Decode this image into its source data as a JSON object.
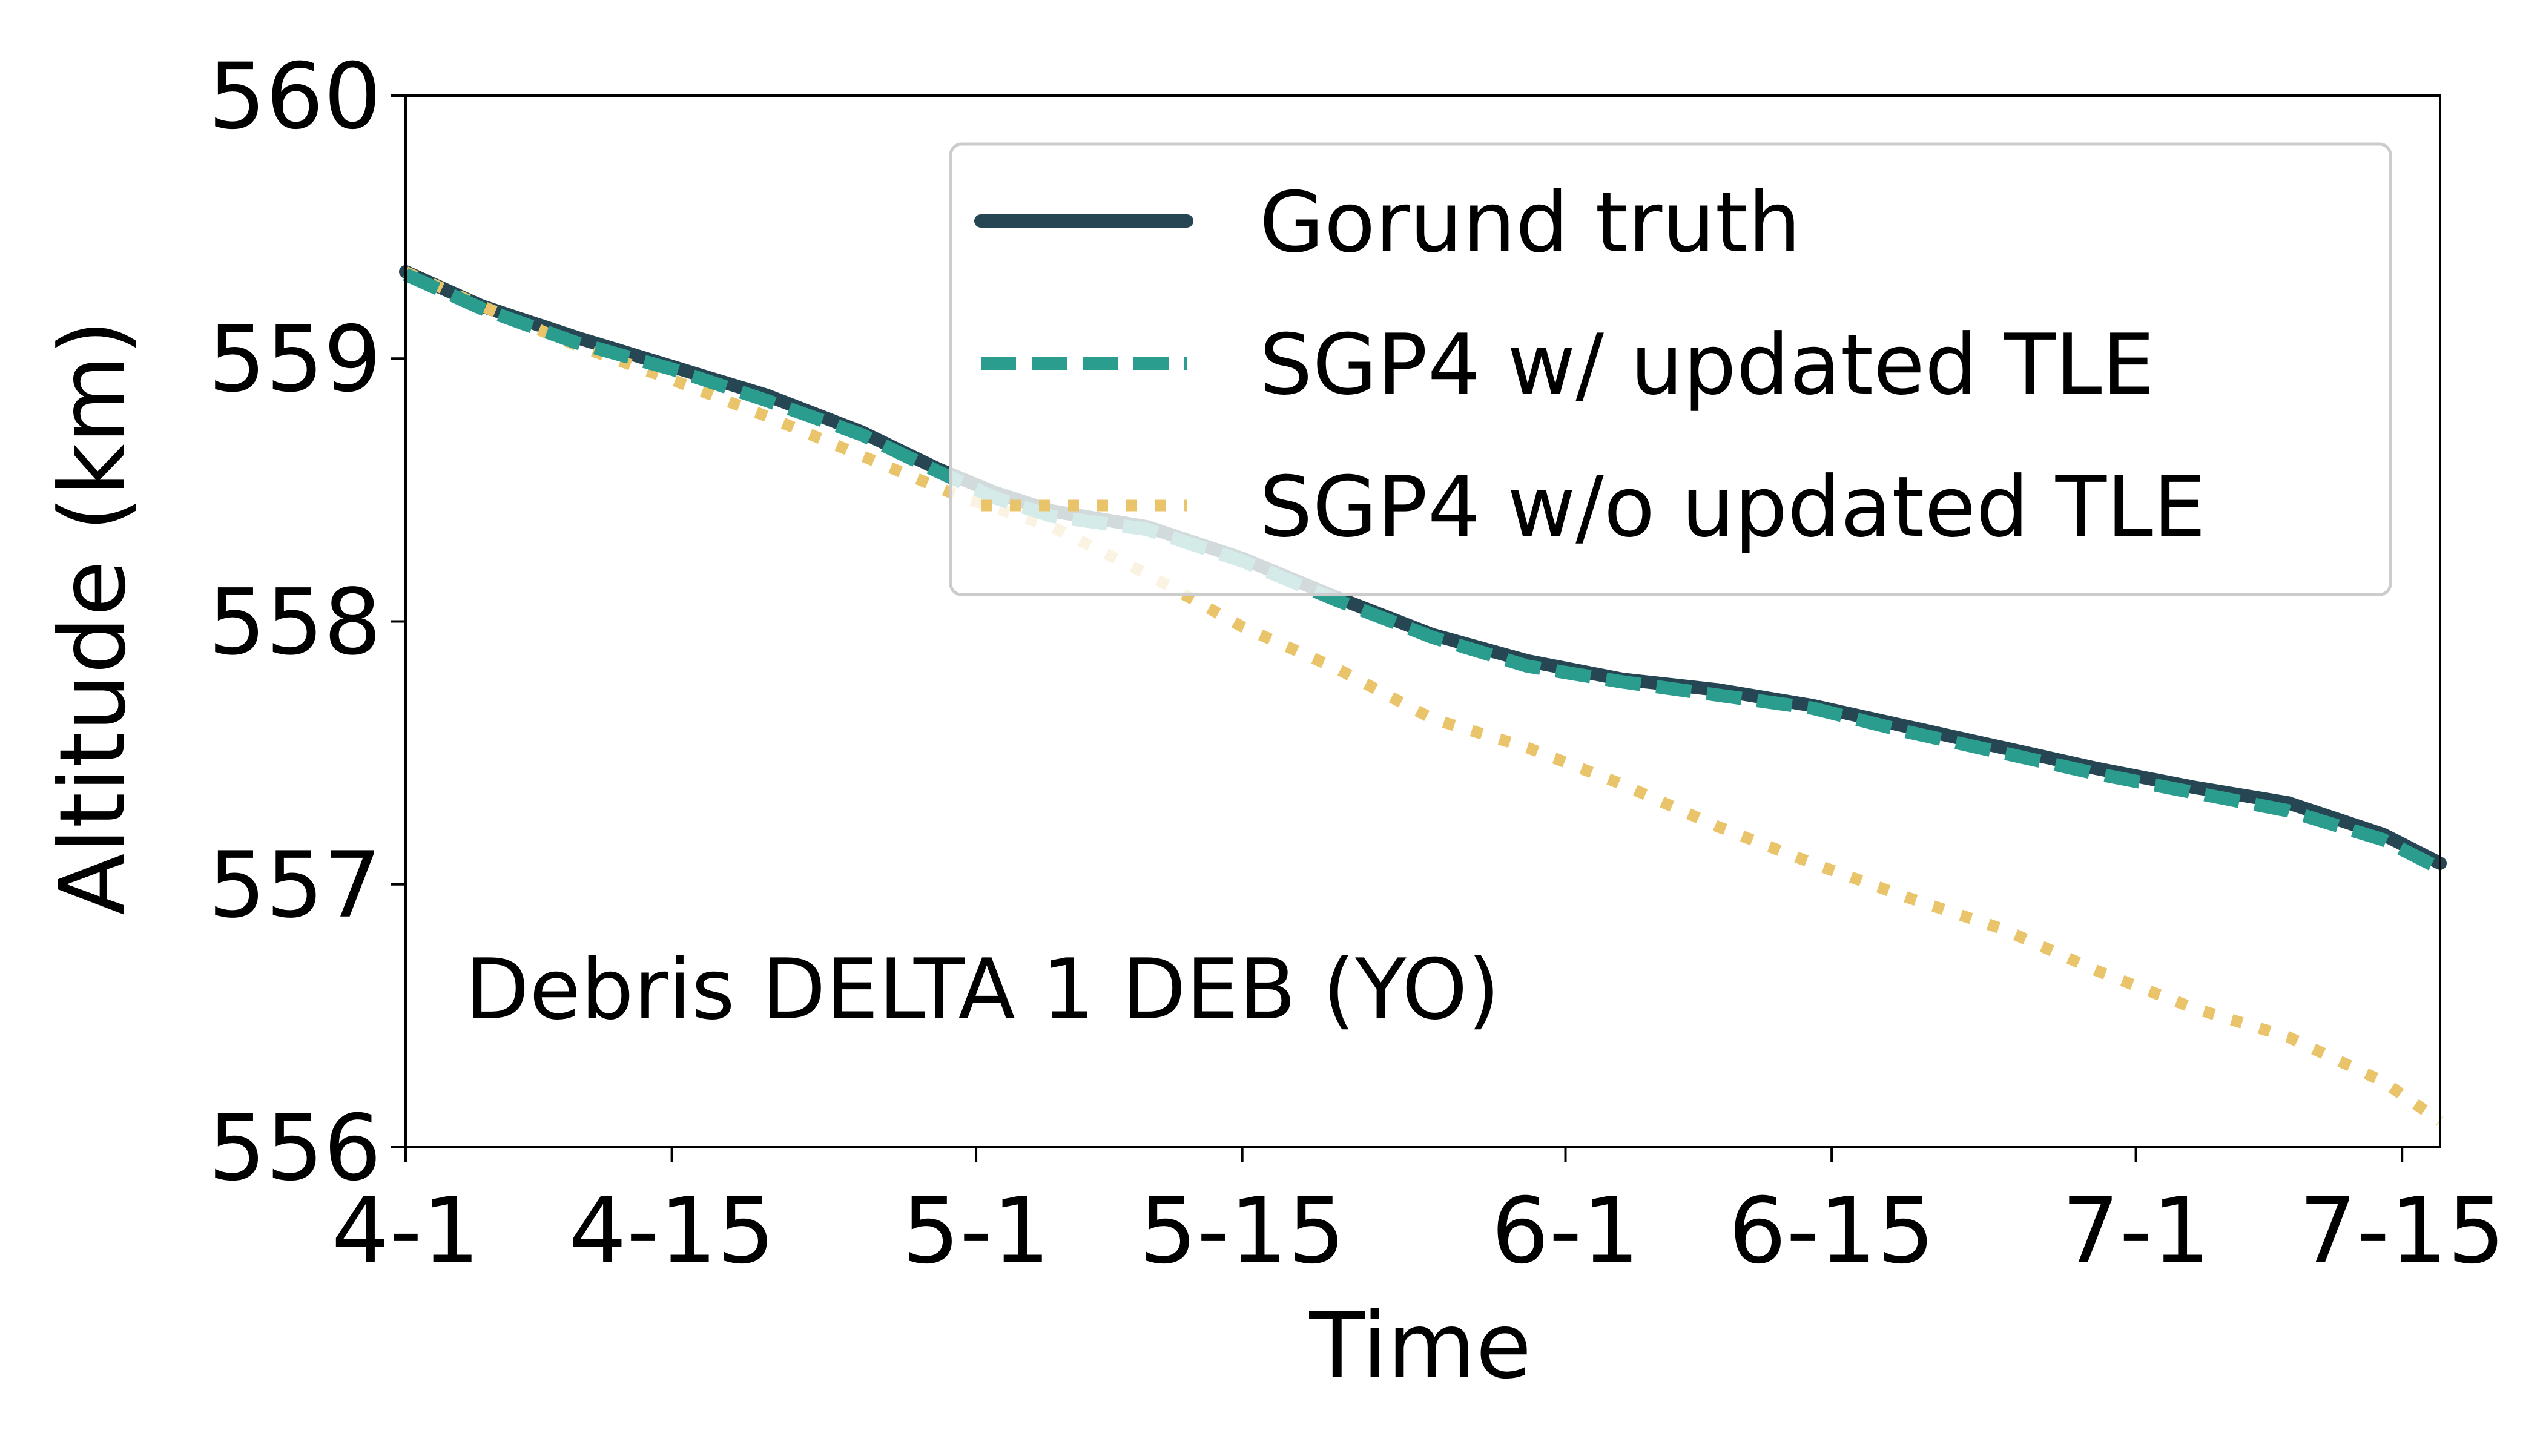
{
  "chart_data": {
    "type": "line",
    "xlabel": "Time",
    "ylabel": "Altitude (km)",
    "annotation": "Debris DELTA 1 DEB (YO)",
    "x_ticks": [
      "4-1",
      "4-15",
      "5-1",
      "5-15",
      "6-1",
      "6-15",
      "7-1",
      "7-15"
    ],
    "x_tick_dates": [
      "04-01",
      "04-15",
      "05-01",
      "05-15",
      "06-01",
      "06-15",
      "07-01",
      "07-15"
    ],
    "x_range": [
      "04-01",
      "07-17"
    ],
    "y_ticks": [
      556,
      557,
      558,
      559,
      560
    ],
    "ylim": [
      556,
      560
    ],
    "grid": false,
    "legend_position": "upper right",
    "series": [
      {
        "name": "Gorund truth",
        "color": "#264653",
        "style": "solid",
        "points": [
          [
            "04-01",
            559.33
          ],
          [
            "04-05",
            559.2
          ],
          [
            "04-10",
            559.08
          ],
          [
            "04-15",
            558.97
          ],
          [
            "04-20",
            558.86
          ],
          [
            "04-25",
            558.72
          ],
          [
            "04-29",
            558.58
          ],
          [
            "05-02",
            558.49
          ],
          [
            "05-05",
            558.42
          ],
          [
            "05-10",
            558.36
          ],
          [
            "05-15",
            558.24
          ],
          [
            "05-20",
            558.09
          ],
          [
            "05-25",
            557.95
          ],
          [
            "05-30",
            557.85
          ],
          [
            "06-04",
            557.78
          ],
          [
            "06-09",
            557.74
          ],
          [
            "06-14",
            557.68
          ],
          [
            "06-19",
            557.6
          ],
          [
            "06-24",
            557.52
          ],
          [
            "06-29",
            557.44
          ],
          [
            "07-04",
            557.37
          ],
          [
            "07-09",
            557.31
          ],
          [
            "07-14",
            557.19
          ],
          [
            "07-17",
            557.08
          ]
        ]
      },
      {
        "name": "SGP4 w/ updated TLE",
        "color": "#2a9d8f",
        "style": "dashed",
        "points": [
          [
            "04-01",
            559.32
          ],
          [
            "04-05",
            559.19
          ],
          [
            "04-10",
            559.06
          ],
          [
            "04-15",
            558.96
          ],
          [
            "04-20",
            558.84
          ],
          [
            "04-25",
            558.71
          ],
          [
            "04-29",
            558.57
          ],
          [
            "05-02",
            558.47
          ],
          [
            "05-05",
            558.4
          ],
          [
            "05-10",
            558.35
          ],
          [
            "05-15",
            558.23
          ],
          [
            "05-20",
            558.08
          ],
          [
            "05-25",
            557.94
          ],
          [
            "05-30",
            557.83
          ],
          [
            "06-04",
            557.77
          ],
          [
            "06-09",
            557.72
          ],
          [
            "06-14",
            557.67
          ],
          [
            "06-19",
            557.58
          ],
          [
            "06-24",
            557.5
          ],
          [
            "06-29",
            557.42
          ],
          [
            "07-04",
            557.35
          ],
          [
            "07-09",
            557.28
          ],
          [
            "07-14",
            557.17
          ],
          [
            "07-17",
            557.06
          ]
        ]
      },
      {
        "name": "SGP4 w/o updated TLE",
        "color": "#e9c46a",
        "style": "dotted",
        "points": [
          [
            "04-01",
            559.33
          ],
          [
            "04-05",
            559.2
          ],
          [
            "04-10",
            559.05
          ],
          [
            "04-15",
            558.92
          ],
          [
            "04-20",
            558.78
          ],
          [
            "04-25",
            558.63
          ],
          [
            "04-30",
            558.48
          ],
          [
            "05-05",
            558.36
          ],
          [
            "05-10",
            558.18
          ],
          [
            "05-15",
            557.98
          ],
          [
            "05-20",
            557.82
          ],
          [
            "05-25",
            557.63
          ],
          [
            "05-30",
            557.52
          ],
          [
            "06-04",
            557.38
          ],
          [
            "06-09",
            557.22
          ],
          [
            "06-14",
            557.08
          ],
          [
            "06-19",
            556.95
          ],
          [
            "06-24",
            556.83
          ],
          [
            "06-29",
            556.67
          ],
          [
            "07-04",
            556.53
          ],
          [
            "07-09",
            556.42
          ],
          [
            "07-14",
            556.25
          ],
          [
            "07-17",
            556.1
          ]
        ]
      }
    ]
  }
}
